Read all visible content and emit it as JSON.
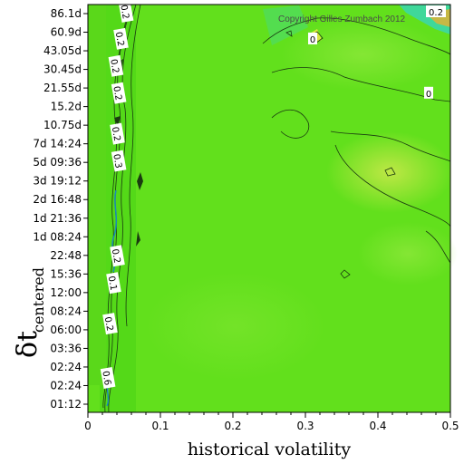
{
  "chart_data": {
    "type": "heatmap",
    "title": "",
    "xlabel": "historical volatility",
    "ylabel_main": "δt",
    "ylabel_sub": "centered",
    "xlim": [
      0,
      0.5
    ],
    "x_ticks": [
      "0",
      "0.1",
      "0.2",
      "0.3",
      "0.4",
      "0.5"
    ],
    "x_tick_values": [
      0,
      0.1,
      0.2,
      0.3,
      0.4,
      0.5
    ],
    "y_ticks": [
      "86.1d",
      "60.9d",
      "43.05d",
      "30.45d",
      "21.55d",
      "15.2d",
      "10.75d",
      "7d 14:24",
      "5d 09:36",
      "3d 19:12",
      "2d 16:48",
      "1d 21:36",
      "1d 08:24",
      "22:48",
      "15:36",
      "12:00",
      "08:24",
      "06:00",
      "03:36",
      "02:24",
      "02:24",
      "01:12"
    ],
    "copyright": "Copyright Gilles Zumbach 2012",
    "contour_labels": [
      {
        "text": "0.2",
        "x": 0.052,
        "y": 0
      },
      {
        "text": "0.2",
        "x": 0.045,
        "y": 2
      },
      {
        "text": "0.2",
        "x": 0.038,
        "y": 4
      },
      {
        "text": "0.2",
        "x": 0.042,
        "y": 6
      },
      {
        "text": "0.2",
        "x": 0.04,
        "y": 9
      },
      {
        "text": "0.3",
        "x": 0.042,
        "y": 11
      },
      {
        "text": "0.2",
        "x": 0.04,
        "y": 18
      },
      {
        "text": "0.1",
        "x": 0.035,
        "y": 20
      },
      {
        "text": "0.2",
        "x": 0.03,
        "y": 23
      },
      {
        "text": "0.6",
        "x": 0.027,
        "y": 27
      },
      {
        "text": "0",
        "x": 0.31,
        "y": 2
      },
      {
        "text": "0",
        "x": 0.47,
        "y": 6
      },
      {
        "text": "0.2",
        "x": 0.48,
        "y": 0
      }
    ],
    "colors": {
      "base": "#62e01c",
      "light": "#8de83a",
      "yellow": "#c8e84a",
      "cyan": "#39d6b0",
      "orange": "#e8b030"
    },
    "grid": false,
    "legend": "none"
  }
}
